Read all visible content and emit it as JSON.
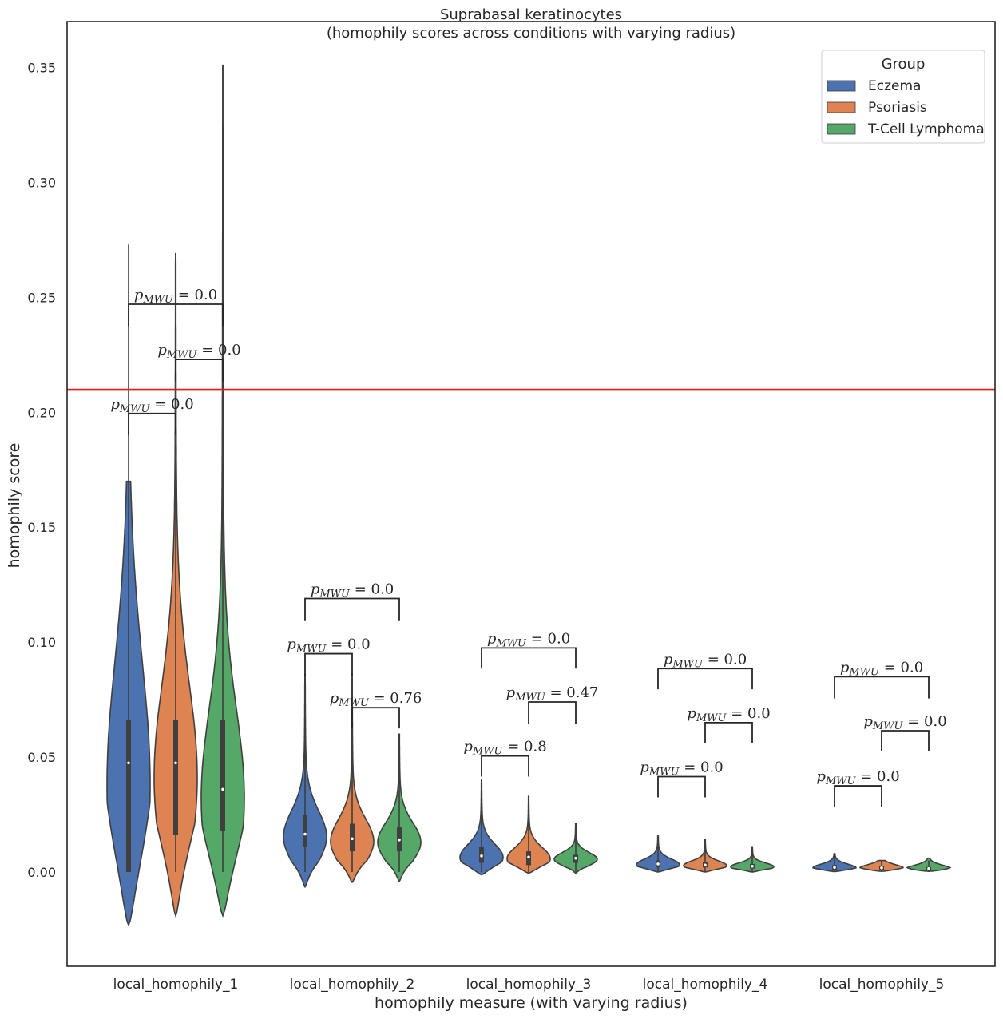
{
  "chart_data": {
    "type": "violin",
    "title": "Suprabasal keratinocytes",
    "subtitle": "(homophily scores across conditions with varying radius)",
    "xlabel": "homophily measure (with varying radius)",
    "ylabel": "homophily score",
    "ylim": [
      -0.041,
      0.37
    ],
    "yticks": [
      0.0,
      0.05,
      0.1,
      0.15,
      0.2,
      0.25,
      0.3,
      0.35
    ],
    "ytick_labels": [
      "0.00",
      "0.05",
      "0.10",
      "0.15",
      "0.20",
      "0.25",
      "0.30",
      "0.35"
    ],
    "categories": [
      "local_homophily_1",
      "local_homophily_2",
      "local_homophily_3",
      "local_homophily_4",
      "local_homophily_5"
    ],
    "legend": {
      "title": "Group",
      "position": "top-right",
      "entries": [
        {
          "name": "Eczema",
          "color": "#4c72b0"
        },
        {
          "name": "Psoriasis",
          "color": "#dd8452"
        },
        {
          "name": "T-Cell Lymphoma",
          "color": "#55a868"
        }
      ]
    },
    "reference_line": {
      "y": 0.21,
      "color": "#e41a1c"
    },
    "series": [
      {
        "name": "Eczema",
        "color": "#4c72b0",
        "stats": [
          {
            "min": 0.0,
            "max": 0.273,
            "q1": 0.0,
            "median": 0.0475,
            "q3": 0.066,
            "kde_low": -0.023,
            "kde_high": 0.17
          },
          {
            "min": 0.0,
            "max": 0.086,
            "q1": 0.011,
            "median": 0.0165,
            "q3": 0.025,
            "kde_low": -0.0065,
            "kde_high": 0.086
          },
          {
            "min": 0.0,
            "max": 0.04,
            "q1": 0.004,
            "median": 0.007,
            "q3": 0.011,
            "kde_low": -0.0012,
            "kde_high": 0.04
          },
          {
            "min": 0.0,
            "max": 0.016,
            "q1": 0.002,
            "median": 0.0035,
            "q3": 0.005,
            "kde_low": 0.0,
            "kde_high": 0.016
          },
          {
            "min": 0.0,
            "max": 0.008,
            "q1": 0.001,
            "median": 0.002,
            "q3": 0.003,
            "kde_low": 0.0002,
            "kde_high": 0.008
          }
        ]
      },
      {
        "name": "Psoriasis",
        "color": "#dd8452",
        "stats": [
          {
            "min": 0.0,
            "max": 0.269,
            "q1": 0.016,
            "median": 0.0475,
            "q3": 0.066,
            "kde_low": -0.019,
            "kde_high": 0.269
          },
          {
            "min": 0.0,
            "max": 0.086,
            "q1": 0.009,
            "median": 0.0145,
            "q3": 0.021,
            "kde_low": -0.0045,
            "kde_high": 0.086
          },
          {
            "min": 0.0,
            "max": 0.033,
            "q1": 0.003,
            "median": 0.0065,
            "q3": 0.009,
            "kde_low": -0.0005,
            "kde_high": 0.033
          },
          {
            "min": 0.0,
            "max": 0.014,
            "q1": 0.002,
            "median": 0.003,
            "q3": 0.0045,
            "kde_low": 0.0,
            "kde_high": 0.014
          },
          {
            "min": 0.0,
            "max": 0.005,
            "q1": 0.001,
            "median": 0.0018,
            "q3": 0.0025,
            "kde_low": 0.0003,
            "kde_high": 0.005
          }
        ]
      },
      {
        "name": "T-Cell Lymphoma",
        "color": "#55a868",
        "stats": [
          {
            "min": 0.0,
            "max": 0.351,
            "q1": 0.018,
            "median": 0.036,
            "q3": 0.066,
            "kde_low": -0.019,
            "kde_high": 0.351
          },
          {
            "min": 0.0,
            "max": 0.06,
            "q1": 0.009,
            "median": 0.014,
            "q3": 0.0195,
            "kde_low": -0.004,
            "kde_high": 0.06
          },
          {
            "min": 0.0,
            "max": 0.021,
            "q1": 0.004,
            "median": 0.006,
            "q3": 0.0075,
            "kde_low": -0.0005,
            "kde_high": 0.021
          },
          {
            "min": 0.0,
            "max": 0.011,
            "q1": 0.0015,
            "median": 0.0025,
            "q3": 0.0035,
            "kde_low": 0.0,
            "kde_high": 0.011
          },
          {
            "min": 0.0,
            "max": 0.005,
            "q1": 0.0008,
            "median": 0.0015,
            "q3": 0.0022,
            "kde_low": 0.0003,
            "kde_high": 0.006
          }
        ]
      }
    ],
    "annotations": [
      {
        "category": 0,
        "pair": [
          "Eczema",
          "Psoriasis"
        ],
        "y_bottom": 0.19,
        "y_top": 0.1995,
        "label": "0.0"
      },
      {
        "category": 0,
        "pair": [
          "Psoriasis",
          "T-Cell Lymphoma"
        ],
        "y_bottom": 0.2135,
        "y_top": 0.223,
        "label": "0.0"
      },
      {
        "category": 0,
        "pair": [
          "Eczema",
          "T-Cell Lymphoma"
        ],
        "y_bottom": 0.2375,
        "y_top": 0.247,
        "label": "0.0"
      },
      {
        "category": 1,
        "pair": [
          "Eczema",
          "Psoriasis"
        ],
        "y_bottom": 0.0855,
        "y_top": 0.095,
        "label": "0.0"
      },
      {
        "category": 1,
        "pair": [
          "Psoriasis",
          "T-Cell Lymphoma"
        ],
        "y_bottom": 0.0625,
        "y_top": 0.0715,
        "label": "0.76"
      },
      {
        "category": 1,
        "pair": [
          "Eczema",
          "T-Cell Lymphoma"
        ],
        "y_bottom": 0.1095,
        "y_top": 0.119,
        "label": "0.0"
      },
      {
        "category": 2,
        "pair": [
          "Eczema",
          "Psoriasis"
        ],
        "y_bottom": 0.0415,
        "y_top": 0.0505,
        "label": "0.8"
      },
      {
        "category": 2,
        "pair": [
          "Psoriasis",
          "T-Cell Lymphoma"
        ],
        "y_bottom": 0.0645,
        "y_top": 0.074,
        "label": "0.47"
      },
      {
        "category": 2,
        "pair": [
          "Eczema",
          "T-Cell Lymphoma"
        ],
        "y_bottom": 0.0885,
        "y_top": 0.0975,
        "label": "0.0"
      },
      {
        "category": 3,
        "pair": [
          "Eczema",
          "Psoriasis"
        ],
        "y_bottom": 0.0325,
        "y_top": 0.0415,
        "label": "0.0"
      },
      {
        "category": 3,
        "pair": [
          "Psoriasis",
          "T-Cell Lymphoma"
        ],
        "y_bottom": 0.056,
        "y_top": 0.065,
        "label": "0.0"
      },
      {
        "category": 3,
        "pair": [
          "Eczema",
          "T-Cell Lymphoma"
        ],
        "y_bottom": 0.0795,
        "y_top": 0.0885,
        "label": "0.0"
      },
      {
        "category": 4,
        "pair": [
          "Eczema",
          "Psoriasis"
        ],
        "y_bottom": 0.0285,
        "y_top": 0.0375,
        "label": "0.0"
      },
      {
        "category": 4,
        "pair": [
          "Psoriasis",
          "T-Cell Lymphoma"
        ],
        "y_bottom": 0.0525,
        "y_top": 0.0615,
        "label": "0.0"
      },
      {
        "category": 4,
        "pair": [
          "Eczema",
          "T-Cell Lymphoma"
        ],
        "y_bottom": 0.0755,
        "y_top": 0.085,
        "label": "0.0"
      }
    ]
  }
}
